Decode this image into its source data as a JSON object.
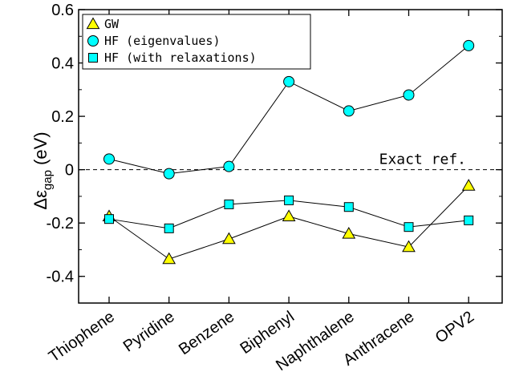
{
  "chart_data": {
    "type": "line",
    "title": "",
    "xlabel": "",
    "ylabel": {
      "main": "Δε",
      "sub": "gap",
      "unit": " (eV)"
    },
    "categories": [
      "Thiophene",
      "Pyridine",
      "Benzene",
      "Biphenyl",
      "Naphthalene",
      "Anthracene",
      "OPV2"
    ],
    "ylim": [
      -0.5,
      0.6
    ],
    "yticks": [
      -0.4,
      -0.2,
      0,
      0.2,
      0.4,
      0.6
    ],
    "ytick_labels": [
      "-0.4",
      "-0.2",
      "0",
      "0.2",
      "0.4",
      "0.6"
    ],
    "grid": false,
    "legend_position": "top-left",
    "series": [
      {
        "name": "GW",
        "marker": "triangle",
        "color": "#ffff00",
        "values": [
          -0.175,
          -0.335,
          -0.26,
          -0.175,
          -0.24,
          -0.29,
          -0.06
        ]
      },
      {
        "name": "HF (eigenvalues)",
        "marker": "circle",
        "color": "#00ffff",
        "values": [
          0.04,
          -0.015,
          0.012,
          0.33,
          0.22,
          0.28,
          0.465
        ]
      },
      {
        "name": "HF (with relaxations)",
        "marker": "square",
        "color": "#00ffff",
        "values": [
          -0.185,
          -0.22,
          -0.13,
          -0.115,
          -0.14,
          -0.215,
          -0.19
        ]
      }
    ],
    "reference_line": {
      "y": 0,
      "label": "Exact ref."
    }
  }
}
